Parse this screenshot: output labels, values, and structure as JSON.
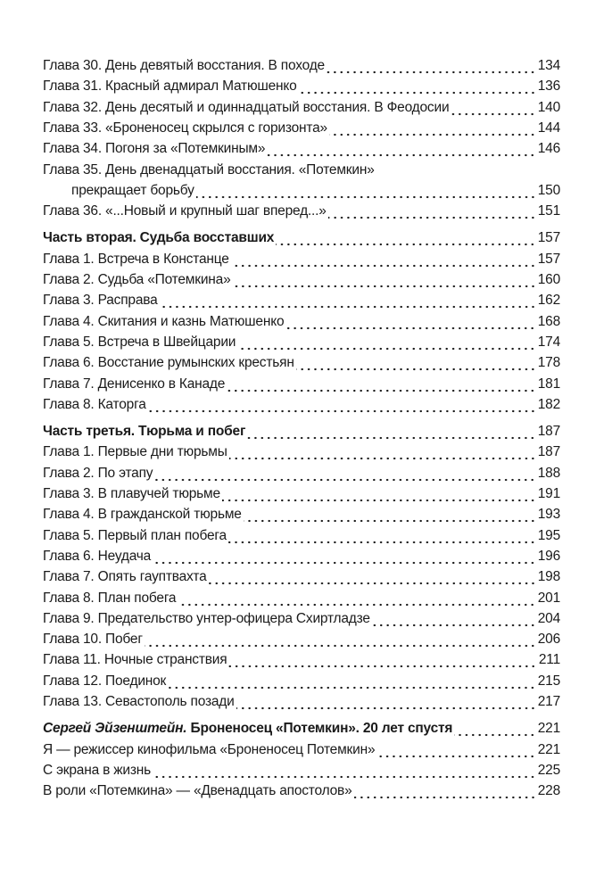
{
  "entries": [
    {
      "type": "chapter",
      "label": "Глава 30. День девятый восстания. В походе",
      "page": "134"
    },
    {
      "type": "chapter",
      "label": "Глава 31. Красный адмирал Матюшенко",
      "page": "136"
    },
    {
      "type": "chapter",
      "label": "Глава 32. День десятый и одиннадцатый восстания. В Феодосии",
      "page": "140"
    },
    {
      "type": "chapter",
      "label": "Глава 33. «Броненосец скрылся с горизонта»",
      "page": "144"
    },
    {
      "type": "chapter",
      "label": "Глава 34. Погоня за «Потемкиным»",
      "page": "146"
    },
    {
      "type": "chapter",
      "label": "Глава 35. День двенадцатый восстания. «Потемкин»",
      "continuation": "прекращает борьбу",
      "page": "150"
    },
    {
      "type": "chapter",
      "label": "Глава 36. «...Новый и крупный шаг вперед...»",
      "page": "151"
    },
    {
      "type": "part",
      "label": "Часть вторая. Судьба восставших",
      "page": "157"
    },
    {
      "type": "chapter",
      "label": "Глава 1. Встреча в Констанце",
      "page": "157"
    },
    {
      "type": "chapter",
      "label": "Глава 2. Судьба «Потемкина»",
      "page": "160"
    },
    {
      "type": "chapter",
      "label": "Глава 3. Расправа",
      "page": "162"
    },
    {
      "type": "chapter",
      "label": "Глава 4. Скитания и казнь Матюшенко",
      "page": "168"
    },
    {
      "type": "chapter",
      "label": "Глава 5. Встреча в Швейцарии",
      "page": "174"
    },
    {
      "type": "chapter",
      "label": "Глава 6. Восстание румынских крестьян",
      "page": "178"
    },
    {
      "type": "chapter",
      "label": "Глава 7. Денисенко в Канаде",
      "page": "181"
    },
    {
      "type": "chapter",
      "label": "Глава 8. Каторга",
      "page": "182"
    },
    {
      "type": "part",
      "label": "Часть третья. Тюрьма и побег",
      "page": "187"
    },
    {
      "type": "chapter",
      "label": "Глава 1. Первые дни тюрьмы",
      "page": "187"
    },
    {
      "type": "chapter",
      "label": "Глава 2. По этапу",
      "page": "188"
    },
    {
      "type": "chapter",
      "label": "Глава 3. В плавучей тюрьме",
      "page": "191"
    },
    {
      "type": "chapter",
      "label": "Глава 4. В гражданской тюрьме",
      "page": "193"
    },
    {
      "type": "chapter",
      "label": "Глава 5. Первый план побега",
      "page": "195"
    },
    {
      "type": "chapter",
      "label": "Глава 6. Неудача",
      "page": "196"
    },
    {
      "type": "chapter",
      "label": "Глава 7. Опять гауптвахта",
      "page": "198"
    },
    {
      "type": "chapter",
      "label": "Глава 8. План побега",
      "page": "201"
    },
    {
      "type": "chapter",
      "label": "Глава 9. Предательство унтер-офицера Схиртладзе",
      "page": "204"
    },
    {
      "type": "chapter",
      "label": "Глава 10. Побег",
      "page": "206"
    },
    {
      "type": "chapter",
      "label": "Глава 11. Ночные странствия",
      "page": "211"
    },
    {
      "type": "chapter",
      "label": "Глава 12. Поединок",
      "page": "215"
    },
    {
      "type": "chapter",
      "label": "Глава 13. Севастополь позади",
      "page": "217"
    },
    {
      "type": "author",
      "author": "Сергей Эйзенштейн.",
      "label": "Броненосец «Потемкин». 20 лет спустя",
      "page": "221"
    },
    {
      "type": "chapter",
      "label": "Я — режиссер кинофильма «Броненосец Потемкин»",
      "page": "221"
    },
    {
      "type": "chapter",
      "label": "С экрана в жизнь",
      "page": "225"
    },
    {
      "type": "chapter",
      "label": "В роли «Потемкина» — «Двенадцать апостолов»",
      "page": "228"
    }
  ]
}
